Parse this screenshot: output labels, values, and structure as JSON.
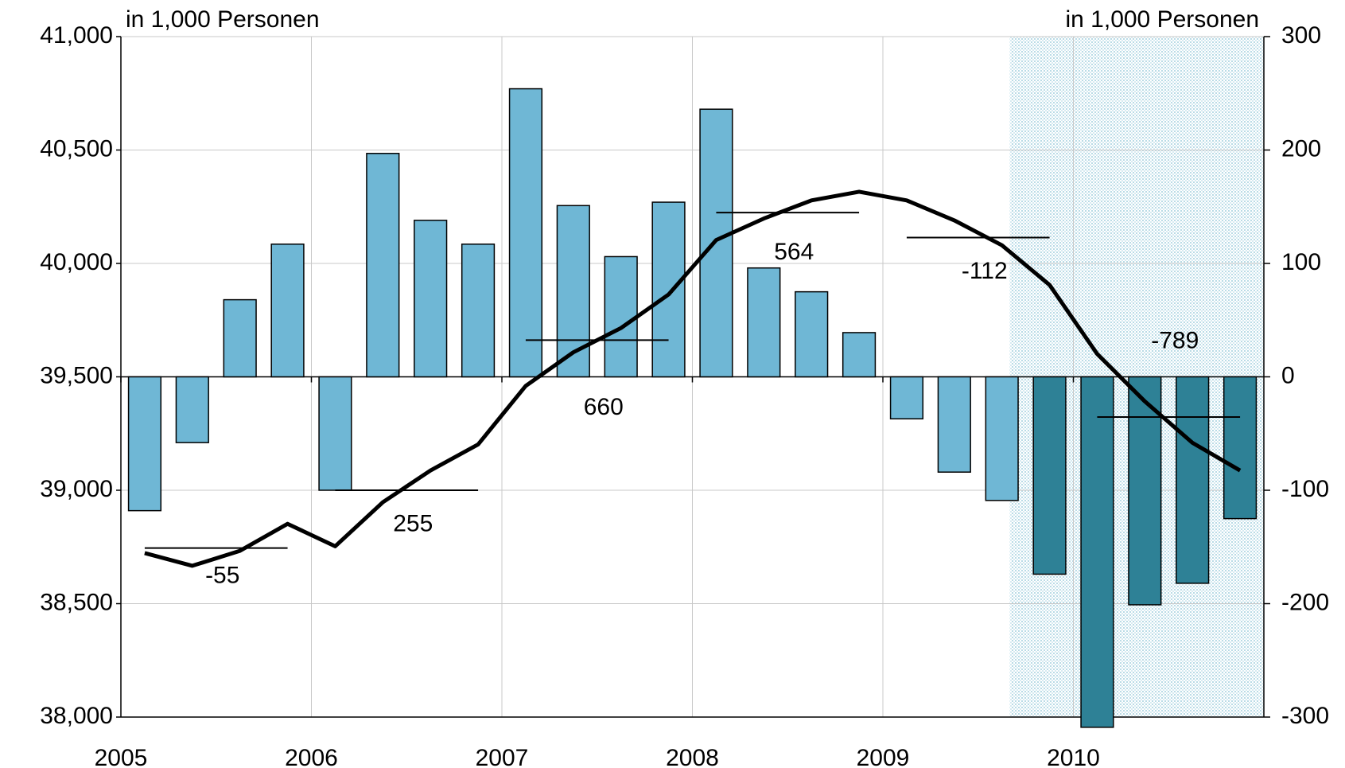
{
  "chart_data": {
    "type": "bar-line",
    "y_label": "in 1,000 Personen",
    "y2_label": "in 1,000 Personen",
    "categories": [
      "2005",
      null,
      null,
      null,
      "2006",
      null,
      null,
      null,
      "2007",
      null,
      null,
      null,
      "2008",
      null,
      null,
      null,
      "2009",
      null,
      null,
      null,
      "2010",
      null,
      null,
      null
    ],
    "series": [
      {
        "type": "bar",
        "axis": "y2",
        "values": [
          -118,
          -58,
          68,
          117,
          -100,
          197,
          138,
          117,
          254,
          151,
          106,
          154,
          236,
          96,
          75,
          39,
          -37,
          -84,
          -109,
          -174,
          -309,
          -201,
          -182,
          -125
        ],
        "colors": [
          "#6fb7d5",
          "#6fb7d5",
          "#6fb7d5",
          "#6fb7d5",
          "#6fb7d5",
          "#6fb7d5",
          "#6fb7d5",
          "#6fb7d5",
          "#6fb7d5",
          "#6fb7d5",
          "#6fb7d5",
          "#6fb7d5",
          "#6fb7d5",
          "#6fb7d5",
          "#6fb7d5",
          "#6fb7d5",
          "#6fb7d5",
          "#6fb7d5",
          "#6fb7d5",
          "#2e8196",
          "#2e8196",
          "#2e8196",
          "#2e8196",
          "#2e8196"
        ]
      },
      {
        "type": "line",
        "axis": "y",
        "color": "#000000",
        "values": [
          38723,
          38667,
          38733,
          38852,
          38753,
          38947,
          39087,
          39202,
          39460,
          39608,
          39715,
          39863,
          40103,
          40198,
          40278,
          40316,
          40278,
          40190,
          40080,
          39905,
          39601,
          39392,
          39209,
          39087
        ]
      }
    ],
    "annual_levels": [
      38745,
      39000,
      39662,
      40224,
      40114,
      39323
    ],
    "annual_changes": [
      -55,
      255,
      660,
      564,
      -112,
      -789
    ],
    "ylim": [
      38000,
      41000
    ],
    "yticks": [
      {
        "value": 38000,
        "label": "38,000"
      },
      {
        "value": 38500,
        "label": "38,500"
      },
      {
        "value": 39000,
        "label": "39,000"
      },
      {
        "value": 39500,
        "label": "39,500"
      },
      {
        "value": 40000,
        "label": "40,000"
      },
      {
        "value": 40500,
        "label": "40,500"
      },
      {
        "value": 41000,
        "label": "41,000"
      }
    ],
    "y2lim": [
      -300,
      300
    ],
    "y2ticks": [
      -300,
      -200,
      -100,
      0,
      100,
      200,
      300
    ],
    "grid": true
  }
}
